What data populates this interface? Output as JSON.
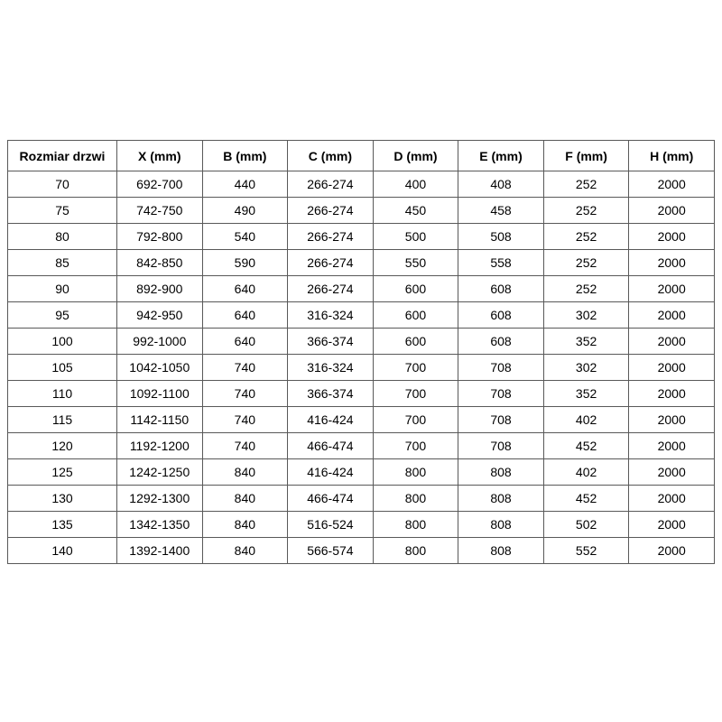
{
  "colors": {
    "background": "#ffffff",
    "border": "#595959",
    "text": "#000000"
  },
  "chart_data": {
    "type": "table",
    "title": "",
    "columns": [
      "Rozmiar drzwi",
      "X (mm)",
      "B (mm)",
      "C (mm)",
      "D (mm)",
      "E (mm)",
      "F (mm)",
      "H (mm)"
    ],
    "rows": [
      [
        "70",
        "692-700",
        "440",
        "266-274",
        "400",
        "408",
        "252",
        "2000"
      ],
      [
        "75",
        "742-750",
        "490",
        "266-274",
        "450",
        "458",
        "252",
        "2000"
      ],
      [
        "80",
        "792-800",
        "540",
        "266-274",
        "500",
        "508",
        "252",
        "2000"
      ],
      [
        "85",
        "842-850",
        "590",
        "266-274",
        "550",
        "558",
        "252",
        "2000"
      ],
      [
        "90",
        "892-900",
        "640",
        "266-274",
        "600",
        "608",
        "252",
        "2000"
      ],
      [
        "95",
        "942-950",
        "640",
        "316-324",
        "600",
        "608",
        "302",
        "2000"
      ],
      [
        "100",
        "992-1000",
        "640",
        "366-374",
        "600",
        "608",
        "352",
        "2000"
      ],
      [
        "105",
        "1042-1050",
        "740",
        "316-324",
        "700",
        "708",
        "302",
        "2000"
      ],
      [
        "110",
        "1092-1100",
        "740",
        "366-374",
        "700",
        "708",
        "352",
        "2000"
      ],
      [
        "115",
        "1142-1150",
        "740",
        "416-424",
        "700",
        "708",
        "402",
        "2000"
      ],
      [
        "120",
        "1192-1200",
        "740",
        "466-474",
        "700",
        "708",
        "452",
        "2000"
      ],
      [
        "125",
        "1242-1250",
        "840",
        "416-424",
        "800",
        "808",
        "402",
        "2000"
      ],
      [
        "130",
        "1292-1300",
        "840",
        "466-474",
        "800",
        "808",
        "452",
        "2000"
      ],
      [
        "135",
        "1342-1350",
        "840",
        "516-524",
        "800",
        "808",
        "502",
        "2000"
      ],
      [
        "140",
        "1392-1400",
        "840",
        "566-574",
        "800",
        "808",
        "552",
        "2000"
      ]
    ]
  }
}
